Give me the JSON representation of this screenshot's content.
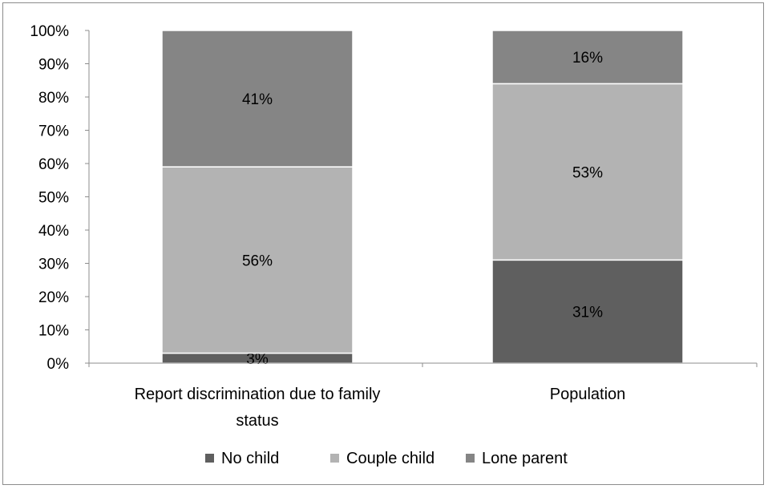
{
  "chart_data": {
    "type": "bar",
    "stacked": true,
    "percent": true,
    "categories": [
      "Report discrimination due to family status",
      "Population"
    ],
    "category_lines": [
      [
        "Report discrimination due to family",
        "status"
      ],
      [
        "Population"
      ]
    ],
    "series": [
      {
        "name": "No child",
        "values": [
          3,
          31
        ],
        "labels": [
          "3%",
          "31%"
        ],
        "color": "#5f5f5f"
      },
      {
        "name": "Couple child",
        "values": [
          56,
          53
        ],
        "labels": [
          "56%",
          "53%"
        ],
        "color": "#b3b3b3"
      },
      {
        "name": "Lone parent",
        "values": [
          41,
          16
        ],
        "labels": [
          "41%",
          "16%"
        ],
        "color": "#858585"
      }
    ],
    "ylim": [
      0,
      100
    ],
    "yticks": [
      "0%",
      "10%",
      "20%",
      "30%",
      "40%",
      "50%",
      "60%",
      "70%",
      "80%",
      "90%",
      "100%"
    ],
    "title": "",
    "xlabel": "",
    "ylabel": "",
    "legend_position": "bottom",
    "grid": false
  }
}
